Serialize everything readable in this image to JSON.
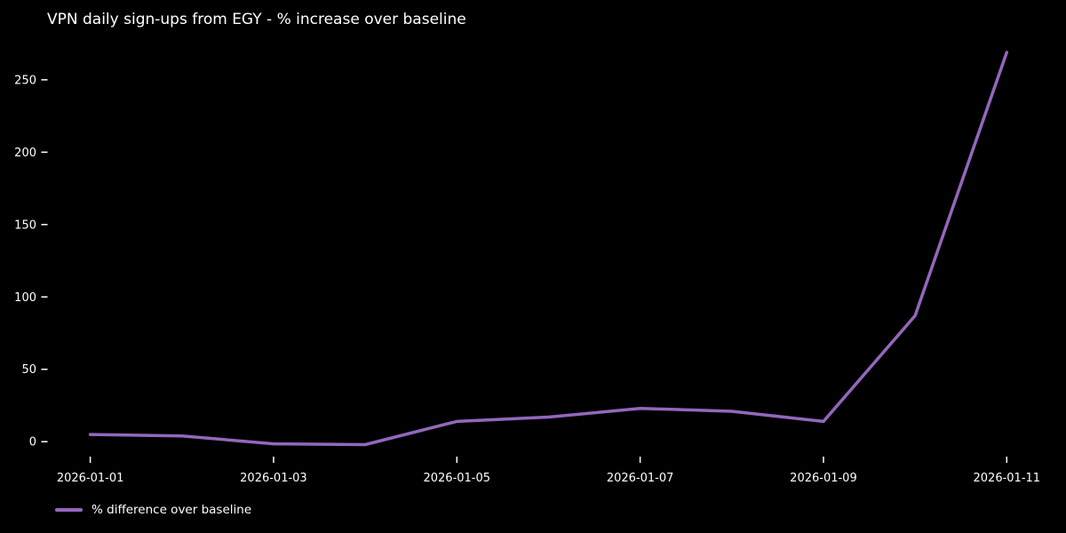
{
  "title": "VPN daily sign-ups from EGY - % increase over baseline",
  "legend": {
    "label": "% difference over baseline",
    "swatch_color": "#9467bd"
  },
  "colors": {
    "background": "#000000",
    "text": "#ffffff",
    "line": "#9467bd"
  },
  "chart_data": {
    "type": "line",
    "title": "VPN daily sign-ups from EGY - % increase over baseline",
    "x": [
      "2026-01-01",
      "2026-01-02",
      "2026-01-03",
      "2026-01-04",
      "2026-01-05",
      "2026-01-06",
      "2026-01-07",
      "2026-01-08",
      "2026-01-09",
      "2026-01-10",
      "2026-01-11"
    ],
    "series": [
      {
        "name": "% difference over baseline",
        "color": "#9467bd",
        "values": [
          5,
          4,
          -1.5,
          -2,
          14,
          17,
          23,
          21,
          14,
          87,
          269
        ]
      }
    ],
    "xlabel": "",
    "ylabel": "",
    "xtick_labels": [
      "2026-01-01",
      "2026-01-03",
      "2026-01-05",
      "2026-01-07",
      "2026-01-09",
      "2026-01-11"
    ],
    "ytick_values": [
      0,
      50,
      100,
      150,
      200,
      250
    ],
    "ylim": [
      -16,
      283
    ],
    "grid": false,
    "legend_position": "lower-left-below-axis",
    "style": "dark background, no spines, outward white ticks"
  }
}
